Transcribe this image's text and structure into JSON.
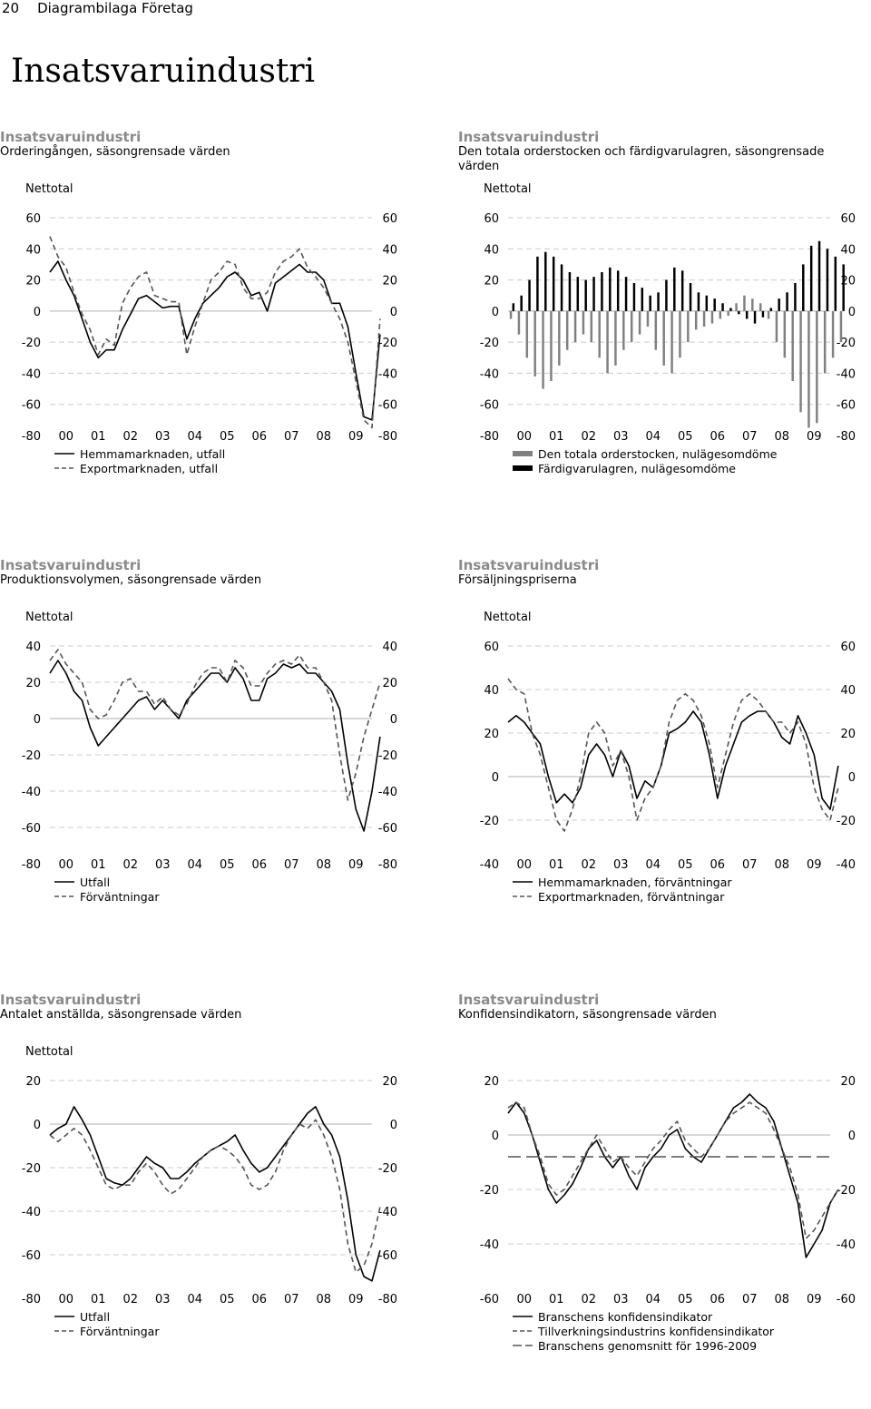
{
  "page": {
    "number": "20",
    "section": "Diagrambilaga Företag",
    "title": "Insatsvaruindustri"
  },
  "colors": {
    "line_solid": "#000000",
    "line_dashed": "#555555",
    "bar_black": "#000000",
    "bar_gray": "#808080",
    "grid": "#cccccc"
  },
  "chart_data": [
    {
      "type": "line",
      "title": "Insatsvaruindustri",
      "subtitle": "Orderingången, säsongrensade värden",
      "ylabel": "Nettotal",
      "ylim": [
        -80,
        60
      ],
      "yticks": [
        60,
        40,
        20,
        0,
        -20,
        -40,
        -60,
        -80
      ],
      "xlim": [
        2000,
        2010
      ],
      "xticks": [
        "00",
        "01",
        "02",
        "03",
        "04",
        "05",
        "06",
        "07",
        "08",
        "09"
      ],
      "x_start": 2000.0,
      "x_step": 0.25,
      "series": [
        {
          "name": "Hemmamarknaden, utfall",
          "style": "solid",
          "values": [
            25,
            32,
            20,
            10,
            -5,
            -20,
            -30,
            -25,
            -25,
            -12,
            -2,
            8,
            10,
            6,
            2,
            3,
            3,
            -18,
            -5,
            5,
            10,
            15,
            22,
            25,
            20,
            10,
            12,
            0,
            18,
            22,
            26,
            30,
            25,
            25,
            20,
            5,
            5,
            -10,
            -40,
            -68,
            -70,
            -15
          ]
        },
        {
          "name": "Exportmarknaden, utfall",
          "style": "dashed",
          "values": [
            48,
            35,
            28,
            12,
            -2,
            -12,
            -28,
            -18,
            -22,
            5,
            15,
            22,
            25,
            10,
            8,
            6,
            6,
            -28,
            -10,
            5,
            20,
            25,
            32,
            30,
            15,
            8,
            8,
            12,
            25,
            32,
            35,
            40,
            28,
            22,
            15,
            5,
            -5,
            -20,
            -45,
            -70,
            -75,
            -5
          ]
        }
      ]
    },
    {
      "type": "bar",
      "title": "Insatsvaruindustri",
      "subtitle": "Den totala orderstocken och färdigvarulagren, säsongrensade värden",
      "ylabel": "Nettotal",
      "ylim": [
        -80,
        60
      ],
      "yticks": [
        60,
        40,
        20,
        0,
        -20,
        -40,
        -60,
        -80
      ],
      "xlim": [
        2000,
        2010
      ],
      "xticks": [
        "00",
        "01",
        "02",
        "03",
        "04",
        "05",
        "06",
        "07",
        "08",
        "09"
      ],
      "x_start": 2000.0,
      "x_step": 0.25,
      "series": [
        {
          "name": "Den totala orderstocken, nulägesomdöme",
          "color": "gray",
          "values": [
            -5,
            -15,
            -30,
            -42,
            -50,
            -45,
            -35,
            -25,
            -20,
            -15,
            -20,
            -30,
            -40,
            -35,
            -25,
            -20,
            -15,
            -10,
            -25,
            -35,
            -40,
            -30,
            -20,
            -12,
            -10,
            -8,
            -5,
            -3,
            5,
            10,
            8,
            5,
            -5,
            -20,
            -30,
            -45,
            -65,
            -75,
            -72,
            -40,
            -30,
            -20
          ]
        },
        {
          "name": "Färdigvarulagren, nulägesomdöme",
          "color": "black",
          "values": [
            5,
            10,
            20,
            35,
            38,
            35,
            30,
            25,
            22,
            20,
            22,
            25,
            28,
            26,
            22,
            18,
            15,
            10,
            12,
            20,
            28,
            26,
            18,
            12,
            10,
            8,
            5,
            2,
            -2,
            -5,
            -8,
            -4,
            2,
            8,
            12,
            18,
            30,
            42,
            45,
            40,
            35,
            30
          ]
        }
      ]
    },
    {
      "type": "line",
      "title": "Insatsvaruindustri",
      "subtitle": "Produktionsvolymen, säsongrensade värden",
      "ylabel": "Nettotal",
      "ylim": [
        -80,
        40
      ],
      "yticks": [
        40,
        20,
        0,
        -20,
        -40,
        -60,
        -80
      ],
      "xlim": [
        2000,
        2010
      ],
      "xticks": [
        "00",
        "01",
        "02",
        "03",
        "04",
        "05",
        "06",
        "07",
        "08",
        "09"
      ],
      "x_start": 2000.0,
      "x_step": 0.25,
      "series": [
        {
          "name": "Utfall",
          "style": "solid",
          "values": [
            25,
            32,
            25,
            15,
            10,
            -5,
            -15,
            -10,
            -5,
            0,
            5,
            10,
            12,
            5,
            10,
            5,
            0,
            10,
            15,
            20,
            25,
            25,
            20,
            28,
            22,
            10,
            10,
            22,
            25,
            30,
            28,
            30,
            25,
            25,
            20,
            15,
            5,
            -25,
            -50,
            -62,
            -40,
            -10
          ]
        },
        {
          "name": "Förväntningar",
          "style": "dashed",
          "values": [
            32,
            38,
            30,
            25,
            20,
            5,
            0,
            2,
            10,
            20,
            22,
            15,
            15,
            8,
            12,
            5,
            2,
            8,
            18,
            25,
            28,
            28,
            20,
            32,
            28,
            18,
            18,
            25,
            30,
            32,
            30,
            35,
            28,
            28,
            20,
            10,
            -20,
            -45,
            -30,
            -10,
            5,
            20
          ]
        }
      ]
    },
    {
      "type": "line",
      "title": "Insatsvaruindustri",
      "subtitle": "Försäljningspriserna",
      "ylabel": "Nettotal",
      "ylim": [
        -40,
        60
      ],
      "yticks": [
        60,
        40,
        20,
        0,
        -20,
        -40
      ],
      "xlim": [
        2000,
        2010
      ],
      "xticks": [
        "00",
        "01",
        "02",
        "03",
        "04",
        "05",
        "06",
        "07",
        "08",
        "09"
      ],
      "x_start": 2000.0,
      "x_step": 0.25,
      "series": [
        {
          "name": "Hemmamarknaden, förväntningar",
          "style": "solid",
          "values": [
            25,
            28,
            25,
            20,
            15,
            0,
            -12,
            -8,
            -12,
            -5,
            10,
            15,
            10,
            0,
            12,
            5,
            -10,
            -2,
            -5,
            5,
            20,
            22,
            25,
            30,
            25,
            10,
            -10,
            5,
            15,
            25,
            28,
            30,
            30,
            25,
            18,
            15,
            28,
            20,
            10,
            -10,
            -15,
            5
          ]
        },
        {
          "name": "Exportmarknaden, förväntningar",
          "style": "dashed",
          "values": [
            45,
            40,
            38,
            20,
            10,
            -5,
            -20,
            -25,
            -15,
            0,
            20,
            25,
            20,
            5,
            12,
            0,
            -20,
            -10,
            -5,
            5,
            25,
            35,
            38,
            35,
            28,
            15,
            -5,
            10,
            25,
            35,
            38,
            35,
            30,
            25,
            25,
            20,
            25,
            15,
            -5,
            -15,
            -20,
            -5
          ]
        }
      ]
    },
    {
      "type": "line",
      "title": "Insatsvaruindustri",
      "subtitle": "Antalet anställda, säsongrensade värden",
      "ylabel": "Nettotal",
      "ylim": [
        -80,
        20
      ],
      "yticks": [
        20,
        0,
        -20,
        -40,
        -60,
        -80
      ],
      "xlim": [
        2000,
        2010
      ],
      "xticks": [
        "00",
        "01",
        "02",
        "03",
        "04",
        "05",
        "06",
        "07",
        "08",
        "09"
      ],
      "x_start": 2000.0,
      "x_step": 0.25,
      "series": [
        {
          "name": "Utfall",
          "style": "solid",
          "values": [
            -5,
            -2,
            0,
            8,
            2,
            -5,
            -15,
            -25,
            -27,
            -28,
            -25,
            -20,
            -15,
            -18,
            -20,
            -25,
            -25,
            -22,
            -18,
            -15,
            -12,
            -10,
            -8,
            -5,
            -12,
            -18,
            -22,
            -20,
            -15,
            -10,
            -5,
            0,
            5,
            8,
            0,
            -5,
            -15,
            -35,
            -60,
            -70,
            -72,
            -58
          ]
        },
        {
          "name": "Förväntningar",
          "style": "dashed",
          "values": [
            -5,
            -8,
            -5,
            -2,
            -5,
            -12,
            -20,
            -28,
            -30,
            -28,
            -28,
            -22,
            -18,
            -22,
            -28,
            -32,
            -30,
            -25,
            -20,
            -15,
            -12,
            -10,
            -12,
            -15,
            -20,
            -28,
            -30,
            -28,
            -22,
            -12,
            -5,
            0,
            -2,
            2,
            -5,
            -15,
            -30,
            -55,
            -68,
            -65,
            -55,
            -38
          ]
        }
      ]
    },
    {
      "type": "line",
      "title": "Insatsvaruindustri",
      "subtitle": "Konfidensindikatorn, säsongrensade värden",
      "ylabel": "",
      "ylim": [
        -60,
        20
      ],
      "yticks": [
        20,
        0,
        -20,
        -40,
        -60
      ],
      "xlim": [
        2000,
        2010
      ],
      "xticks": [
        "00",
        "01",
        "02",
        "03",
        "04",
        "05",
        "06",
        "07",
        "08",
        "09"
      ],
      "x_start": 2000.0,
      "x_step": 0.25,
      "series": [
        {
          "name": "Branschens konfidensindikator",
          "style": "solid",
          "values": [
            8,
            12,
            8,
            0,
            -10,
            -20,
            -25,
            -22,
            -18,
            -12,
            -5,
            -2,
            -8,
            -12,
            -8,
            -15,
            -20,
            -12,
            -8,
            -5,
            0,
            2,
            -5,
            -8,
            -10,
            -5,
            0,
            5,
            10,
            12,
            15,
            12,
            10,
            5,
            -5,
            -15,
            -25,
            -45,
            -40,
            -35,
            -25,
            -20
          ]
        },
        {
          "name": "Tillverkningsindustrins konfidensindikator",
          "style": "dashed",
          "values": [
            10,
            12,
            10,
            0,
            -8,
            -18,
            -22,
            -20,
            -15,
            -10,
            -5,
            0,
            -5,
            -10,
            -8,
            -12,
            -15,
            -10,
            -5,
            -2,
            2,
            5,
            -2,
            -5,
            -8,
            -5,
            0,
            5,
            8,
            10,
            12,
            10,
            8,
            2,
            -5,
            -12,
            -22,
            -38,
            -35,
            -30,
            -25,
            -20
          ]
        },
        {
          "name": "Branschens genomsnitt för 1996-2009",
          "style": "longdash",
          "constant": -8
        }
      ]
    }
  ]
}
